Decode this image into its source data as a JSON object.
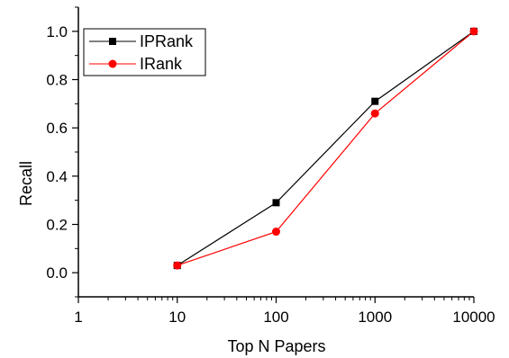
{
  "chart_data": {
    "type": "line",
    "title": "",
    "xlabel": "Top N Papers",
    "ylabel": "Recall",
    "x_scale": "log",
    "x_ticks": [
      "1",
      "10",
      "100",
      "1000",
      "10000"
    ],
    "y_ticks": [
      "0.0",
      "0.2",
      "0.4",
      "0.6",
      "0.8",
      "1.0"
    ],
    "xlim": [
      1,
      10000
    ],
    "ylim": [
      -0.1,
      1.1
    ],
    "grid": false,
    "legend_position": "top-left",
    "x": [
      10,
      100,
      1000,
      10000
    ],
    "series": [
      {
        "name": "IPRank",
        "values": [
          0.03,
          0.29,
          0.71,
          1.0
        ],
        "color": "#000000",
        "marker": "square"
      },
      {
        "name": "IRank",
        "values": [
          0.03,
          0.17,
          0.66,
          1.0
        ],
        "color": "#ff0000",
        "marker": "circle"
      }
    ]
  }
}
